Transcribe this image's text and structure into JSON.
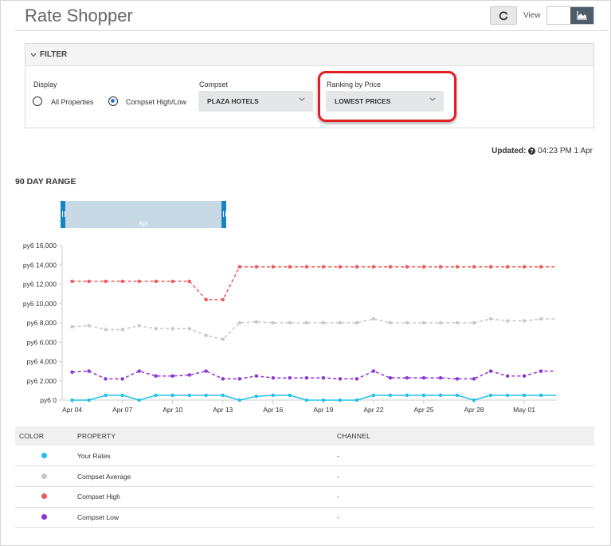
{
  "header": {
    "title": "Rate Shopper",
    "view_label": "View"
  },
  "icons": {
    "refresh": "refresh-icon",
    "view_table": "table-view-icon",
    "view_chart": "area-chart-icon"
  },
  "filter": {
    "heading": "FILTER",
    "display": {
      "label": "Display",
      "options": [
        "All Properties",
        "Compset High/Low"
      ],
      "selected": "Compset High/Low"
    },
    "compset": {
      "label": "Compset",
      "value": "PLAZA HOTELS"
    },
    "ranking": {
      "label": "Ranking by Price",
      "value": "LOWEST PRICES"
    }
  },
  "updated": {
    "label": "Updated:",
    "value": "04:23 PM 1 Apr"
  },
  "range": {
    "title": "90 DAY RANGE",
    "navigator_label": "Apr"
  },
  "colors": {
    "your_rates": "#1ec0ea",
    "compset_average": "#c8c8c8",
    "compset_high": "#ee5a5a",
    "compset_low": "#8e33d6",
    "navigator": "#c8d9e6",
    "handle": "#1584c4"
  },
  "chart_data": {
    "type": "line",
    "y_tick_labels": [
      "py6 16,000",
      "py6 14,000",
      "py6 12,000",
      "py6 10,000",
      "py6 8,000",
      "py6 6,000",
      "py6 4,000",
      "py6 2,000",
      "py6 0"
    ],
    "y_values": [
      16000,
      14000,
      12000,
      10000,
      8000,
      6000,
      4000,
      2000,
      0
    ],
    "ylim": [
      0,
      16000
    ],
    "x_tick_labels": [
      "Apr 04",
      "Apr 07",
      "Apr 10",
      "Apr 13",
      "Apr 16",
      "Apr 19",
      "Apr 22",
      "Apr 25",
      "Apr 28",
      "May 01"
    ],
    "x_tick_days": [
      0,
      3,
      6,
      9,
      12,
      15,
      18,
      21,
      24,
      27
    ],
    "xlim_days": [
      -0.6,
      28.9
    ],
    "series": [
      {
        "name": "Compset High",
        "key": "compset_high",
        "dashed": true,
        "values": [
          12300,
          12300,
          12300,
          12300,
          12300,
          12300,
          12300,
          12300,
          10400,
          10400,
          13800,
          13800,
          13800,
          13800,
          13800,
          13800,
          13800,
          13800,
          13800,
          13800,
          13800,
          13800,
          13800,
          13800,
          13800,
          13800,
          13800,
          13800,
          13800
        ]
      },
      {
        "name": "Compset Average",
        "key": "compset_average",
        "dashed": true,
        "values": [
          7600,
          7700,
          7300,
          7300,
          7700,
          7400,
          7400,
          7400,
          6700,
          6300,
          8000,
          8100,
          8000,
          8000,
          8000,
          8000,
          8000,
          8000,
          8400,
          8000,
          8000,
          8000,
          8000,
          8000,
          8000,
          8400,
          8200,
          8200,
          8400
        ]
      },
      {
        "name": "Compset Low",
        "key": "compset_low",
        "dashed": true,
        "values": [
          2900,
          3000,
          2200,
          2200,
          3000,
          2500,
          2500,
          2600,
          3000,
          2200,
          2200,
          2500,
          2300,
          2300,
          2300,
          2300,
          2200,
          2200,
          3000,
          2300,
          2300,
          2300,
          2300,
          2200,
          2200,
          3000,
          2500,
          2500,
          3000
        ]
      },
      {
        "name": "Your Rates",
        "key": "your_rates",
        "dashed": false,
        "values": [
          0,
          0,
          500,
          500,
          0,
          500,
          500,
          500,
          500,
          500,
          0,
          400,
          500,
          500,
          0,
          0,
          0,
          0,
          500,
          500,
          500,
          500,
          500,
          500,
          0,
          500,
          500,
          500,
          500
        ]
      }
    ]
  },
  "legend_table": {
    "columns": [
      "COLOR",
      "PROPERTY",
      "CHANNEL"
    ],
    "rows": [
      {
        "key": "your_rates",
        "property": "Your Rates",
        "channel": "-"
      },
      {
        "key": "compset_average",
        "property": "Compset Average",
        "channel": "-"
      },
      {
        "key": "compset_high",
        "property": "Compset High",
        "channel": "-"
      },
      {
        "key": "compset_low",
        "property": "Compset Low",
        "channel": "-"
      }
    ]
  }
}
